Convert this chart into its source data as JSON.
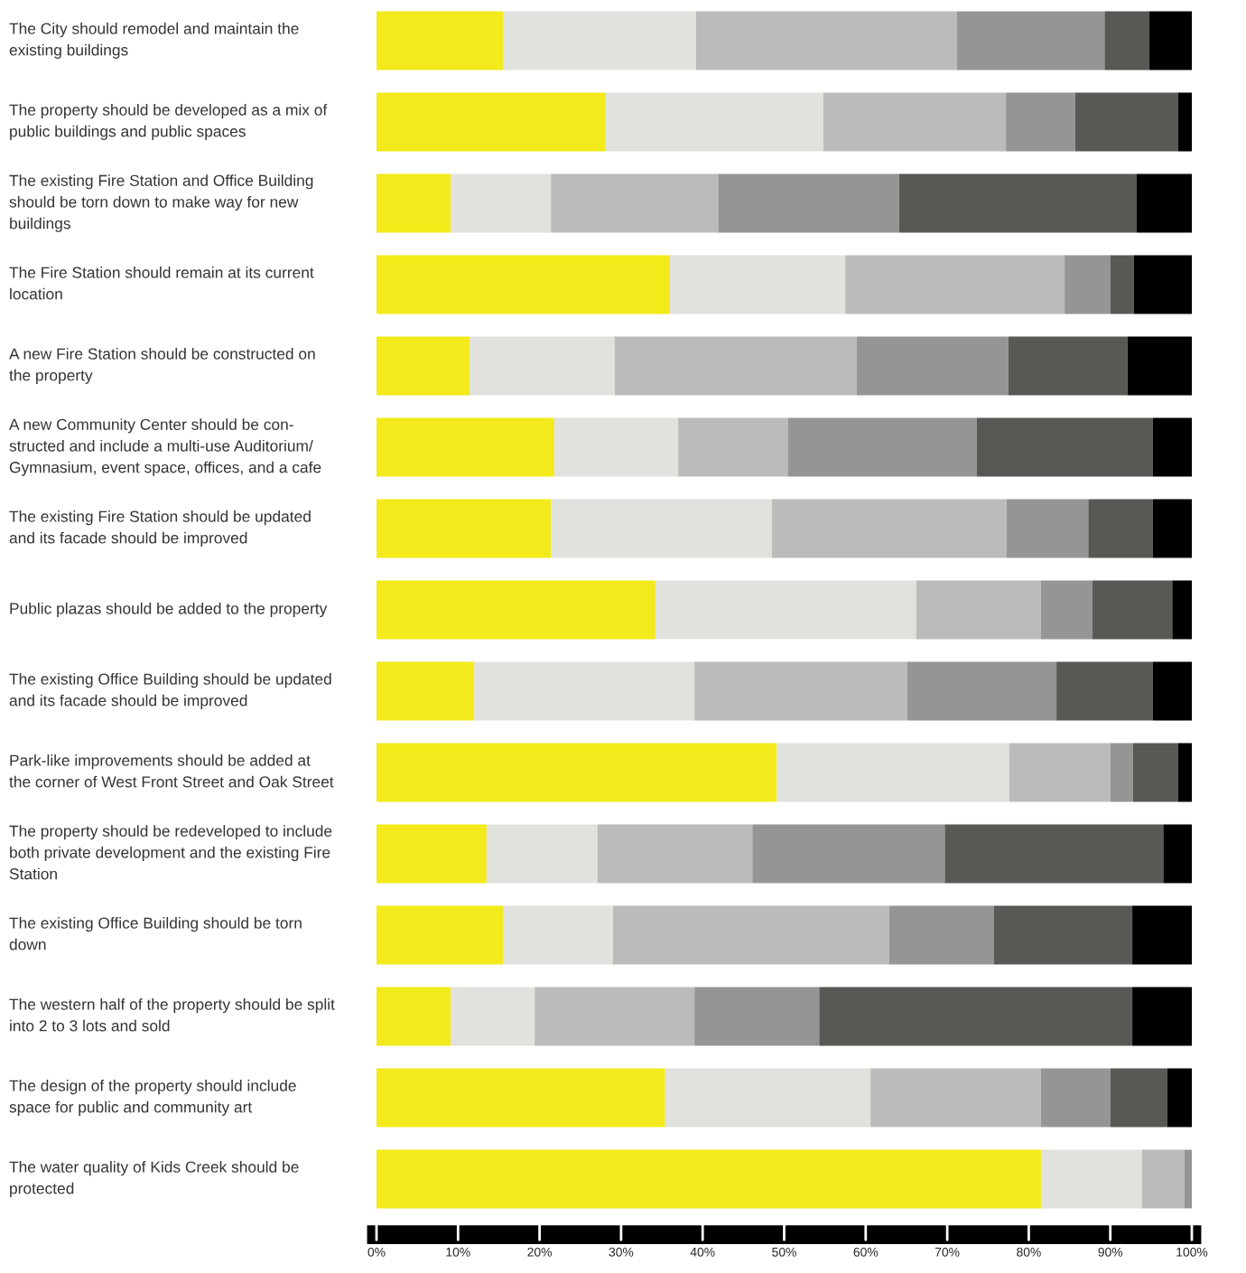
{
  "chart_data": {
    "type": "bar",
    "orientation": "horizontal",
    "stacked": true,
    "categories": [
      "The City should remodel and maintain the\nexisting buildings",
      "The property should be developed as a mix of\npublic buildings and public spaces",
      "The existing Fire Station and Office Building\nshould be torn down to make way for new\nbuildings",
      "The Fire Station should remain at its current\nlocation",
      "A new Fire Station should be constructed on\nthe property",
      "A new Community Center should be con-\nstructed and include a multi-use Auditorium/\nGymnasium, event space, offices, and a cafe",
      "The existing Fire Station should be updated\nand its facade should be improved",
      "Public plazas should be added to the property",
      "The existing Office Building should be updated\nand its facade should be improved",
      "Park-like improvements should be added at\nthe corner of West Front Street and Oak Street",
      "The property should be redeveloped to include\nboth private development and the existing Fire\nStation",
      "The existing Office Building should be torn\ndown",
      "The western half of the property should be split\ninto 2 to 3 lots and sold",
      "The design of the property should include\nspace for public and community art",
      "The water quality of Kids Creek should be\nprotected"
    ],
    "series": [
      {
        "color": "#f2ea1a",
        "values": [
          15.5,
          28.1,
          9.1,
          36.0,
          11.4,
          21.8,
          21.4,
          34.2,
          12.0,
          49.1,
          13.5,
          15.5,
          9.1,
          35.4,
          81.5
        ]
      },
      {
        "color": "#e1e1dd",
        "values": [
          23.7,
          26.7,
          12.3,
          21.5,
          17.8,
          15.2,
          27.1,
          32.0,
          27.0,
          28.5,
          13.6,
          13.5,
          10.3,
          25.2,
          12.4
        ]
      },
      {
        "color": "#bbbbbb",
        "values": [
          32.0,
          22.4,
          20.5,
          26.9,
          29.7,
          13.5,
          28.8,
          15.3,
          26.1,
          12.4,
          19.0,
          33.9,
          19.6,
          20.9,
          5.2
        ]
      },
      {
        "color": "#959595",
        "values": [
          18.1,
          8.5,
          22.2,
          5.6,
          18.6,
          23.1,
          10.0,
          6.3,
          18.3,
          2.8,
          23.6,
          12.8,
          15.3,
          8.5,
          0.9
        ]
      },
      {
        "color": "#585854",
        "values": [
          5.5,
          12.6,
          29.1,
          2.9,
          14.6,
          21.6,
          7.9,
          9.8,
          11.8,
          5.5,
          26.8,
          17.0,
          38.4,
          7.0,
          0
        ]
      },
      {
        "color": "#000000",
        "values": [
          5.2,
          1.7,
          6.8,
          7.1,
          7.9,
          4.8,
          4.8,
          2.4,
          4.8,
          1.7,
          3.5,
          7.3,
          7.3,
          3.0,
          0
        ]
      }
    ],
    "xlim": [
      0,
      100
    ],
    "xticks": [
      {
        "value": 0,
        "label": "0%"
      },
      {
        "value": 10,
        "label": "10%"
      },
      {
        "value": 20,
        "label": "20%"
      },
      {
        "value": 30,
        "label": "30%"
      },
      {
        "value": 40,
        "label": "40%"
      },
      {
        "value": 50,
        "label": "50%"
      },
      {
        "value": 60,
        "label": "60%"
      },
      {
        "value": 70,
        "label": "70%"
      },
      {
        "value": 80,
        "label": "80%"
      },
      {
        "value": 90,
        "label": "90%"
      },
      {
        "value": 100,
        "label": "100%"
      }
    ],
    "grid": false,
    "legend": false
  }
}
